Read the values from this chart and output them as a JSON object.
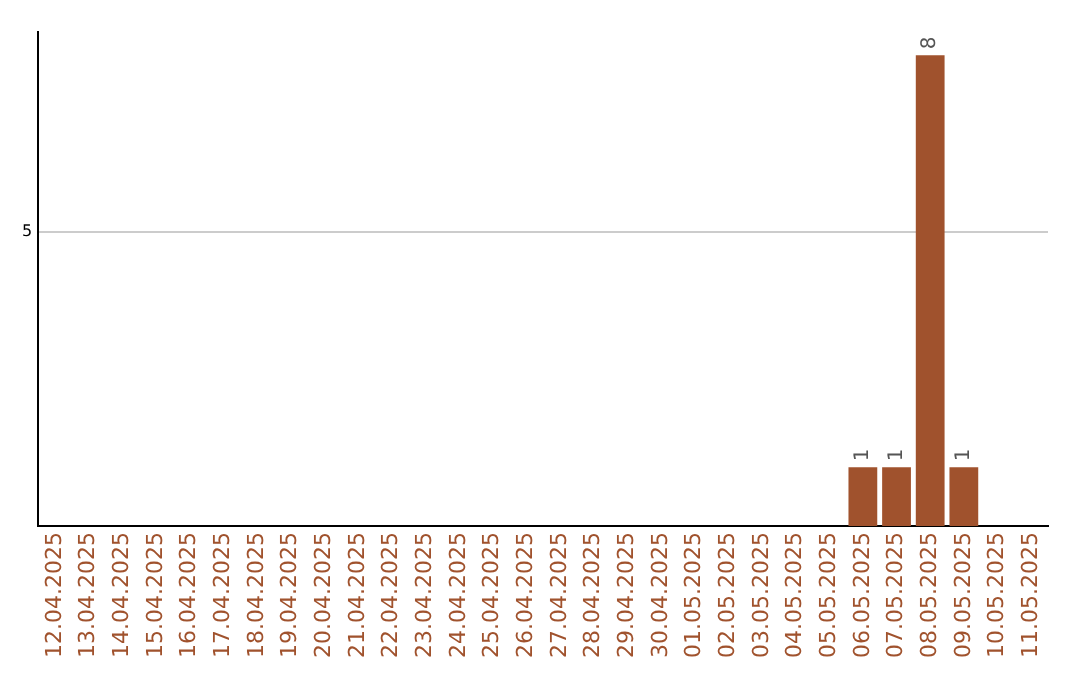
{
  "chart_data": {
    "type": "bar",
    "categories": [
      "12.04.2025",
      "13.04.2025",
      "14.04.2025",
      "15.04.2025",
      "16.04.2025",
      "17.04.2025",
      "18.04.2025",
      "19.04.2025",
      "20.04.2025",
      "21.04.2025",
      "22.04.2025",
      "23.04.2025",
      "24.04.2025",
      "25.04.2025",
      "26.04.2025",
      "27.04.2025",
      "28.04.2025",
      "29.04.2025",
      "30.04.2025",
      "01.05.2025",
      "02.05.2025",
      "03.05.2025",
      "04.05.2025",
      "05.05.2025",
      "06.05.2025",
      "07.05.2025",
      "08.05.2025",
      "09.05.2025",
      "10.05.2025",
      "11.05.2025"
    ],
    "values": [
      null,
      null,
      null,
      null,
      null,
      null,
      null,
      null,
      null,
      null,
      null,
      null,
      null,
      null,
      null,
      null,
      null,
      null,
      null,
      null,
      null,
      null,
      null,
      null,
      1,
      1,
      8,
      1,
      null,
      null
    ],
    "color": "#a0522d",
    "ylim": [
      0,
      8.4
    ],
    "yticks": [
      5
    ],
    "grid": "y",
    "data_labels": true,
    "legend": false
  }
}
